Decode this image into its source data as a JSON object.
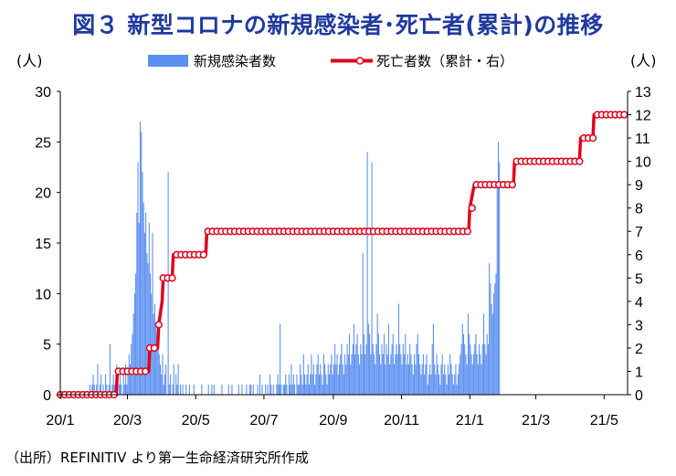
{
  "title": "図３ 新型コロナの新規感染者･死亡者(累計)の推移",
  "source": "（出所）REFINITIV より第一生命経済研究所作成",
  "colors": {
    "title": "#1f3a9e",
    "bars": "#5b8ff0",
    "line": "#e0001a",
    "marker_fill": "#ffffff"
  },
  "chart_data": {
    "type": "bar+line",
    "title": "図３ 新型コロナの新規感染者･死亡者(累計)の推移",
    "left_unit": "(人)",
    "right_unit": "(人)",
    "ylim_left": [
      0,
      30
    ],
    "ylim_right": [
      0,
      13
    ],
    "yticks_left": [
      "0",
      "5",
      "10",
      "15",
      "20",
      "25",
      "30"
    ],
    "yticks_right": [
      "0",
      "1",
      "2",
      "3",
      "4",
      "5",
      "6",
      "7",
      "8",
      "9",
      "10",
      "11",
      "12",
      "13"
    ],
    "xticks": [
      "20/1",
      "20/3",
      "20/5",
      "20/7",
      "20/9",
      "20/11",
      "21/1",
      "21/3",
      "21/5"
    ],
    "legend": {
      "placement": "top",
      "bar_label": "新規感染者数",
      "line_label": "死亡者数（累計・右）"
    },
    "series": [
      {
        "name": "新規感染者数",
        "kind": "bar",
        "axis": "left",
        "x_start": "2020-01-01",
        "x_end": "2021-05-20",
        "description_values_daily_estimate": [
          0,
          0,
          0,
          0,
          0,
          0,
          0,
          0,
          0,
          0,
          0,
          0,
          0,
          0,
          0,
          0,
          0,
          0,
          0,
          0,
          0,
          0,
          0,
          0,
          0,
          0,
          1,
          0,
          1,
          2,
          1,
          0,
          1,
          3,
          0,
          1,
          2,
          0,
          1,
          0,
          2,
          1,
          0,
          1,
          5,
          0,
          1,
          2,
          1,
          0,
          3,
          0,
          1,
          2,
          1,
          0,
          2,
          1,
          3,
          1,
          2,
          4,
          3,
          5,
          6,
          8,
          10,
          12,
          18,
          23,
          17,
          27,
          26,
          22,
          19,
          16,
          18,
          14,
          13,
          17,
          12,
          10,
          16,
          8,
          9,
          7,
          6,
          5,
          4,
          3,
          2,
          4,
          1,
          2,
          3,
          0,
          22,
          1,
          2,
          0,
          1,
          3,
          0,
          2,
          1,
          3,
          0,
          1,
          0,
          1,
          0,
          0,
          1,
          0,
          0,
          1,
          0,
          0,
          0,
          1,
          0,
          0,
          0,
          0,
          0,
          0,
          1,
          0,
          0,
          0,
          0,
          0,
          1,
          0,
          0,
          1,
          0,
          1,
          0,
          0,
          0,
          0,
          0,
          0,
          1,
          0,
          0,
          0,
          0,
          0,
          1,
          0,
          0,
          1,
          0,
          0,
          0,
          0,
          0,
          1,
          0,
          0,
          1,
          0,
          0,
          0,
          1,
          0,
          0,
          1,
          1,
          0,
          1,
          0,
          0,
          0,
          1,
          0,
          2,
          0,
          1,
          0,
          0,
          1,
          0,
          1,
          0,
          2,
          1,
          0,
          1,
          0,
          0,
          1,
          2,
          1,
          7,
          1,
          0,
          1,
          1,
          2,
          1,
          0,
          2,
          1,
          3,
          1,
          2,
          1,
          0,
          2,
          1,
          1,
          3,
          2,
          1,
          4,
          2,
          1,
          2,
          3,
          1,
          2,
          4,
          2,
          3,
          1,
          2,
          3,
          4,
          2,
          3,
          2,
          1,
          4,
          3,
          2,
          1,
          3,
          2,
          3,
          4,
          2,
          3,
          5,
          3,
          4,
          2,
          3,
          4,
          5,
          3,
          2,
          4,
          3,
          5,
          4,
          6,
          3,
          4,
          5,
          7,
          4,
          5,
          6,
          4,
          3,
          5,
          4,
          14,
          6,
          4,
          5,
          24,
          7,
          6,
          4,
          23,
          5,
          4,
          3,
          5,
          8,
          6,
          4,
          3,
          5,
          4,
          6,
          3,
          5,
          4,
          7,
          3,
          4,
          5,
          6,
          3,
          4,
          5,
          4,
          9,
          5,
          4,
          3,
          5,
          4,
          6,
          3,
          4,
          3,
          5,
          4,
          3,
          2,
          4,
          3,
          5,
          6,
          4,
          3,
          2,
          3,
          4,
          2,
          3,
          4,
          1,
          2,
          3,
          2,
          5,
          7,
          3,
          2,
          4,
          3,
          2,
          1,
          3,
          4,
          2,
          3,
          2,
          1,
          3,
          2,
          4,
          3,
          2,
          1,
          2,
          3,
          1,
          2,
          3,
          4,
          5,
          7,
          6,
          5,
          4,
          3,
          8,
          6,
          5,
          4,
          3,
          4,
          5,
          6,
          4,
          3,
          5,
          4,
          3,
          5,
          8,
          5,
          4,
          6,
          5,
          13,
          11,
          9,
          8,
          10,
          11,
          12,
          21,
          25,
          23
        ]
      },
      {
        "name": "死亡者数（累計・右）",
        "kind": "line",
        "axis": "right",
        "points": [
          [
            "2020-01-01",
            0
          ],
          [
            "2020-02-20",
            0
          ],
          [
            "2020-02-21",
            1
          ],
          [
            "2020-03-20",
            1
          ],
          [
            "2020-03-21",
            2
          ],
          [
            "2020-03-28",
            2
          ],
          [
            "2020-03-29",
            3
          ],
          [
            "2020-04-01",
            4
          ],
          [
            "2020-04-02",
            5
          ],
          [
            "2020-04-10",
            5
          ],
          [
            "2020-04-11",
            6
          ],
          [
            "2020-05-10",
            6
          ],
          [
            "2020-05-11",
            7
          ],
          [
            "2020-12-31",
            7
          ],
          [
            "2021-01-01",
            8
          ],
          [
            "2021-01-05",
            9
          ],
          [
            "2021-02-09",
            9
          ],
          [
            "2021-02-10",
            10
          ],
          [
            "2021-04-09",
            10
          ],
          [
            "2021-04-10",
            11
          ],
          [
            "2021-04-21",
            11
          ],
          [
            "2021-04-22",
            12
          ],
          [
            "2021-05-20",
            12
          ]
        ]
      }
    ]
  }
}
